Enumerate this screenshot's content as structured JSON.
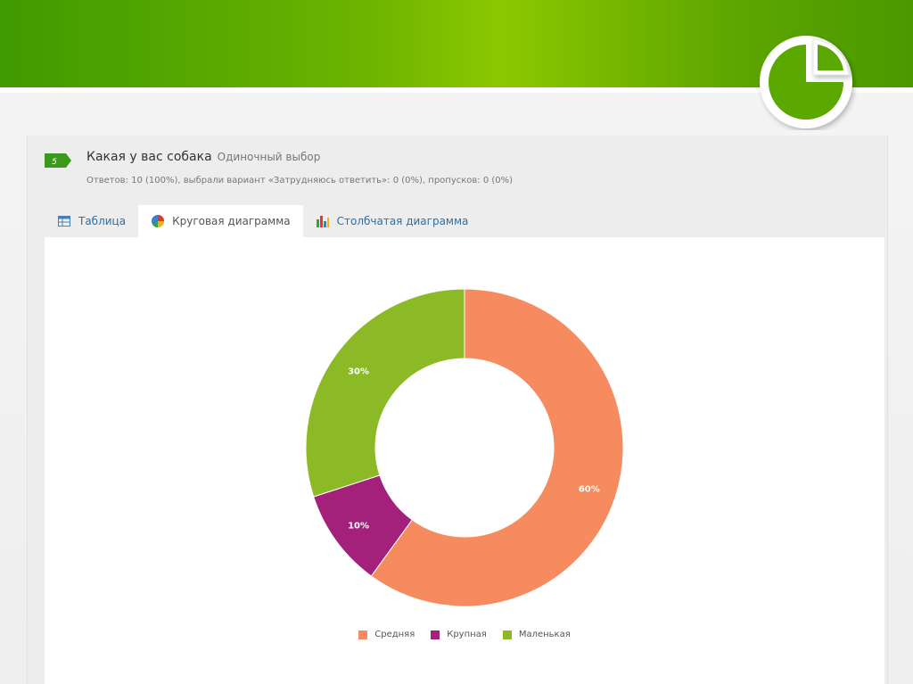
{
  "question": {
    "number": "5",
    "title": "Какая у вас собака",
    "type": "Одиночный выбор",
    "stats": "Ответов: 10 (100%), выбрали вариант «Затрудняюсь ответить»: 0 (0%), пропусков: 0 (0%)"
  },
  "tabs": [
    {
      "label": "Таблица",
      "icon": "table-icon"
    },
    {
      "label": "Круговая диаграмма",
      "icon": "pie-chart-icon"
    },
    {
      "label": "Столбчатая диаграмма",
      "icon": "bar-chart-icon"
    }
  ],
  "active_tab": 1,
  "colors": {
    "banner": "#6cb400",
    "badge": "#3a9a1e",
    "link": "#2b6fa6"
  },
  "chart_data": {
    "type": "pie",
    "donut": true,
    "legend_position": "bottom-center",
    "categories": [
      "Средняя",
      "Крупная",
      "Маленькая"
    ],
    "values": [
      60,
      10,
      30
    ],
    "labels": [
      "60%",
      "10%",
      "30%"
    ],
    "colors": [
      "#f58b5f",
      "#a3217b",
      "#8cba27"
    ]
  }
}
